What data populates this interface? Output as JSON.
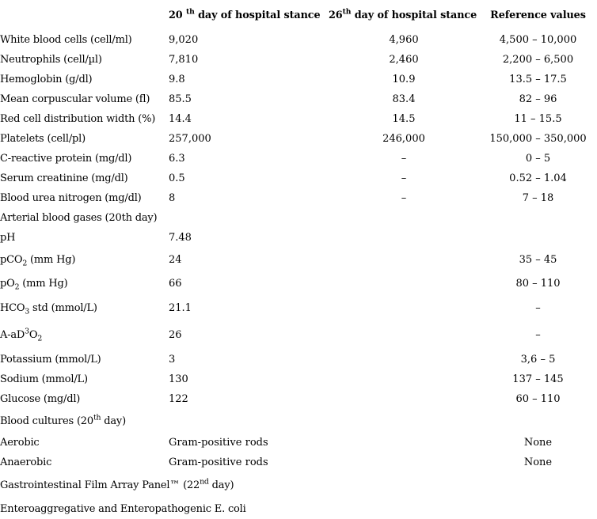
{
  "page": {
    "background_color": "#ffffff",
    "text_color": "#000000"
  },
  "table": {
    "headers": {
      "day20_parts": [
        {
          "t": "20 "
        },
        {
          "t": "th",
          "s": "sup"
        },
        {
          "t": " day of hospital stance"
        }
      ],
      "day26_parts": [
        {
          "t": "26"
        },
        {
          "t": "th",
          "s": "sup"
        },
        {
          "t": " day of hospital stance"
        }
      ],
      "reference": "Reference values"
    },
    "rows": [
      {
        "type": "data",
        "label_parts": [
          {
            "t": "White blood cells (cell/ml)"
          }
        ],
        "d20": "9,020",
        "d26": "4,960",
        "ref": "4,500 – 10,000"
      },
      {
        "type": "data",
        "label_parts": [
          {
            "t": "Neutrophils (cell/µl)"
          }
        ],
        "d20": "7,810",
        "d26": "2,460",
        "ref": "2,200 – 6,500"
      },
      {
        "type": "data",
        "label_parts": [
          {
            "t": "Hemoglobin (g/dl)"
          }
        ],
        "d20": "9.8",
        "d26": "10.9",
        "ref": "13.5 – 17.5"
      },
      {
        "type": "data",
        "label_parts": [
          {
            "t": "Mean corpuscular volume (fl)"
          }
        ],
        "d20": "85.5",
        "d26": "83.4",
        "ref": "82 – 96"
      },
      {
        "type": "data",
        "label_parts": [
          {
            "t": "Red cell distribution width (%)"
          }
        ],
        "d20": "14.4",
        "d26": "14.5",
        "ref": "11 – 15.5"
      },
      {
        "type": "data",
        "label_parts": [
          {
            "t": "Platelets (cell/pl)"
          }
        ],
        "d20": "257,000",
        "d26": "246,000",
        "ref": "150,000 – 350,000"
      },
      {
        "type": "data",
        "label_parts": [
          {
            "t": "C-reactive protein (mg/dl)"
          }
        ],
        "d20": "6.3",
        "d26": "–",
        "ref": "0 – 5"
      },
      {
        "type": "data",
        "label_parts": [
          {
            "t": "Serum creatinine (mg/dl)"
          }
        ],
        "d20": "0.5",
        "d26": "–",
        "ref": "0.52 – 1.04"
      },
      {
        "type": "data",
        "label_parts": [
          {
            "t": "Blood urea nitrogen (mg/dl)"
          }
        ],
        "d20": "8",
        "d26": "–",
        "ref": "7 – 18"
      },
      {
        "type": "section",
        "label_parts": [
          {
            "t": "Arterial blood gases (20th day)"
          }
        ]
      },
      {
        "type": "data",
        "label_parts": [
          {
            "t": "pH"
          }
        ],
        "d20": "7.48",
        "d26": "",
        "ref": ""
      },
      {
        "type": "data",
        "label_parts": [
          {
            "t": "pCO"
          },
          {
            "t": "2",
            "s": "sub"
          },
          {
            "t": " (mm Hg)"
          }
        ],
        "d20": "24",
        "d26": "",
        "ref": "35 – 45"
      },
      {
        "type": "data",
        "label_parts": [
          {
            "t": "pO"
          },
          {
            "t": "2",
            "s": "sub"
          },
          {
            "t": " (mm Hg)"
          }
        ],
        "d20": "66",
        "d26": "",
        "ref": "80 – 110"
      },
      {
        "type": "data",
        "label_parts": [
          {
            "t": "HCO"
          },
          {
            "t": "3",
            "s": "sub"
          },
          {
            "t": " std (mmol/L)"
          }
        ],
        "d20": "21.1",
        "d26": "",
        "ref": "–"
      },
      {
        "type": "data",
        "label_parts": [
          {
            "t": "A-aD"
          },
          {
            "t": "3",
            "s": "sup"
          },
          {
            "t": "O"
          },
          {
            "t": "2",
            "s": "sub"
          }
        ],
        "d20": "26",
        "d26": "",
        "ref": "–"
      },
      {
        "type": "data",
        "label_parts": [
          {
            "t": "Potassium (mmol/L)"
          }
        ],
        "d20": "3",
        "d26": "",
        "ref": "3,6 – 5"
      },
      {
        "type": "data",
        "label_parts": [
          {
            "t": "Sodium (mmol/L)"
          }
        ],
        "d20": "130",
        "d26": "",
        "ref": "137 – 145"
      },
      {
        "type": "data",
        "label_parts": [
          {
            "t": "Glucose (mg/dl)"
          }
        ],
        "d20": "122",
        "d26": "",
        "ref": "60 – 110"
      },
      {
        "type": "section",
        "label_parts": [
          {
            "t": "Blood cultures (20"
          },
          {
            "t": "th",
            "s": "sup"
          },
          {
            "t": " day)"
          }
        ]
      },
      {
        "type": "data",
        "label_parts": [
          {
            "t": "Aerobic"
          }
        ],
        "d20": "Gram-positive rods",
        "d26": "",
        "ref": "None"
      },
      {
        "type": "data",
        "label_parts": [
          {
            "t": "Anaerobic"
          }
        ],
        "d20": "Gram-positive rods",
        "d26": "",
        "ref": "None"
      },
      {
        "type": "section",
        "label_parts": [
          {
            "t": "Gastrointestinal Film Array Panel™ (22"
          },
          {
            "t": "nd",
            "s": "sup"
          },
          {
            "t": " day)"
          }
        ]
      },
      {
        "type": "section",
        "label_parts": [
          {
            "t": "Enteroaggregative and Enteropathogenic E. coli"
          }
        ]
      }
    ]
  }
}
